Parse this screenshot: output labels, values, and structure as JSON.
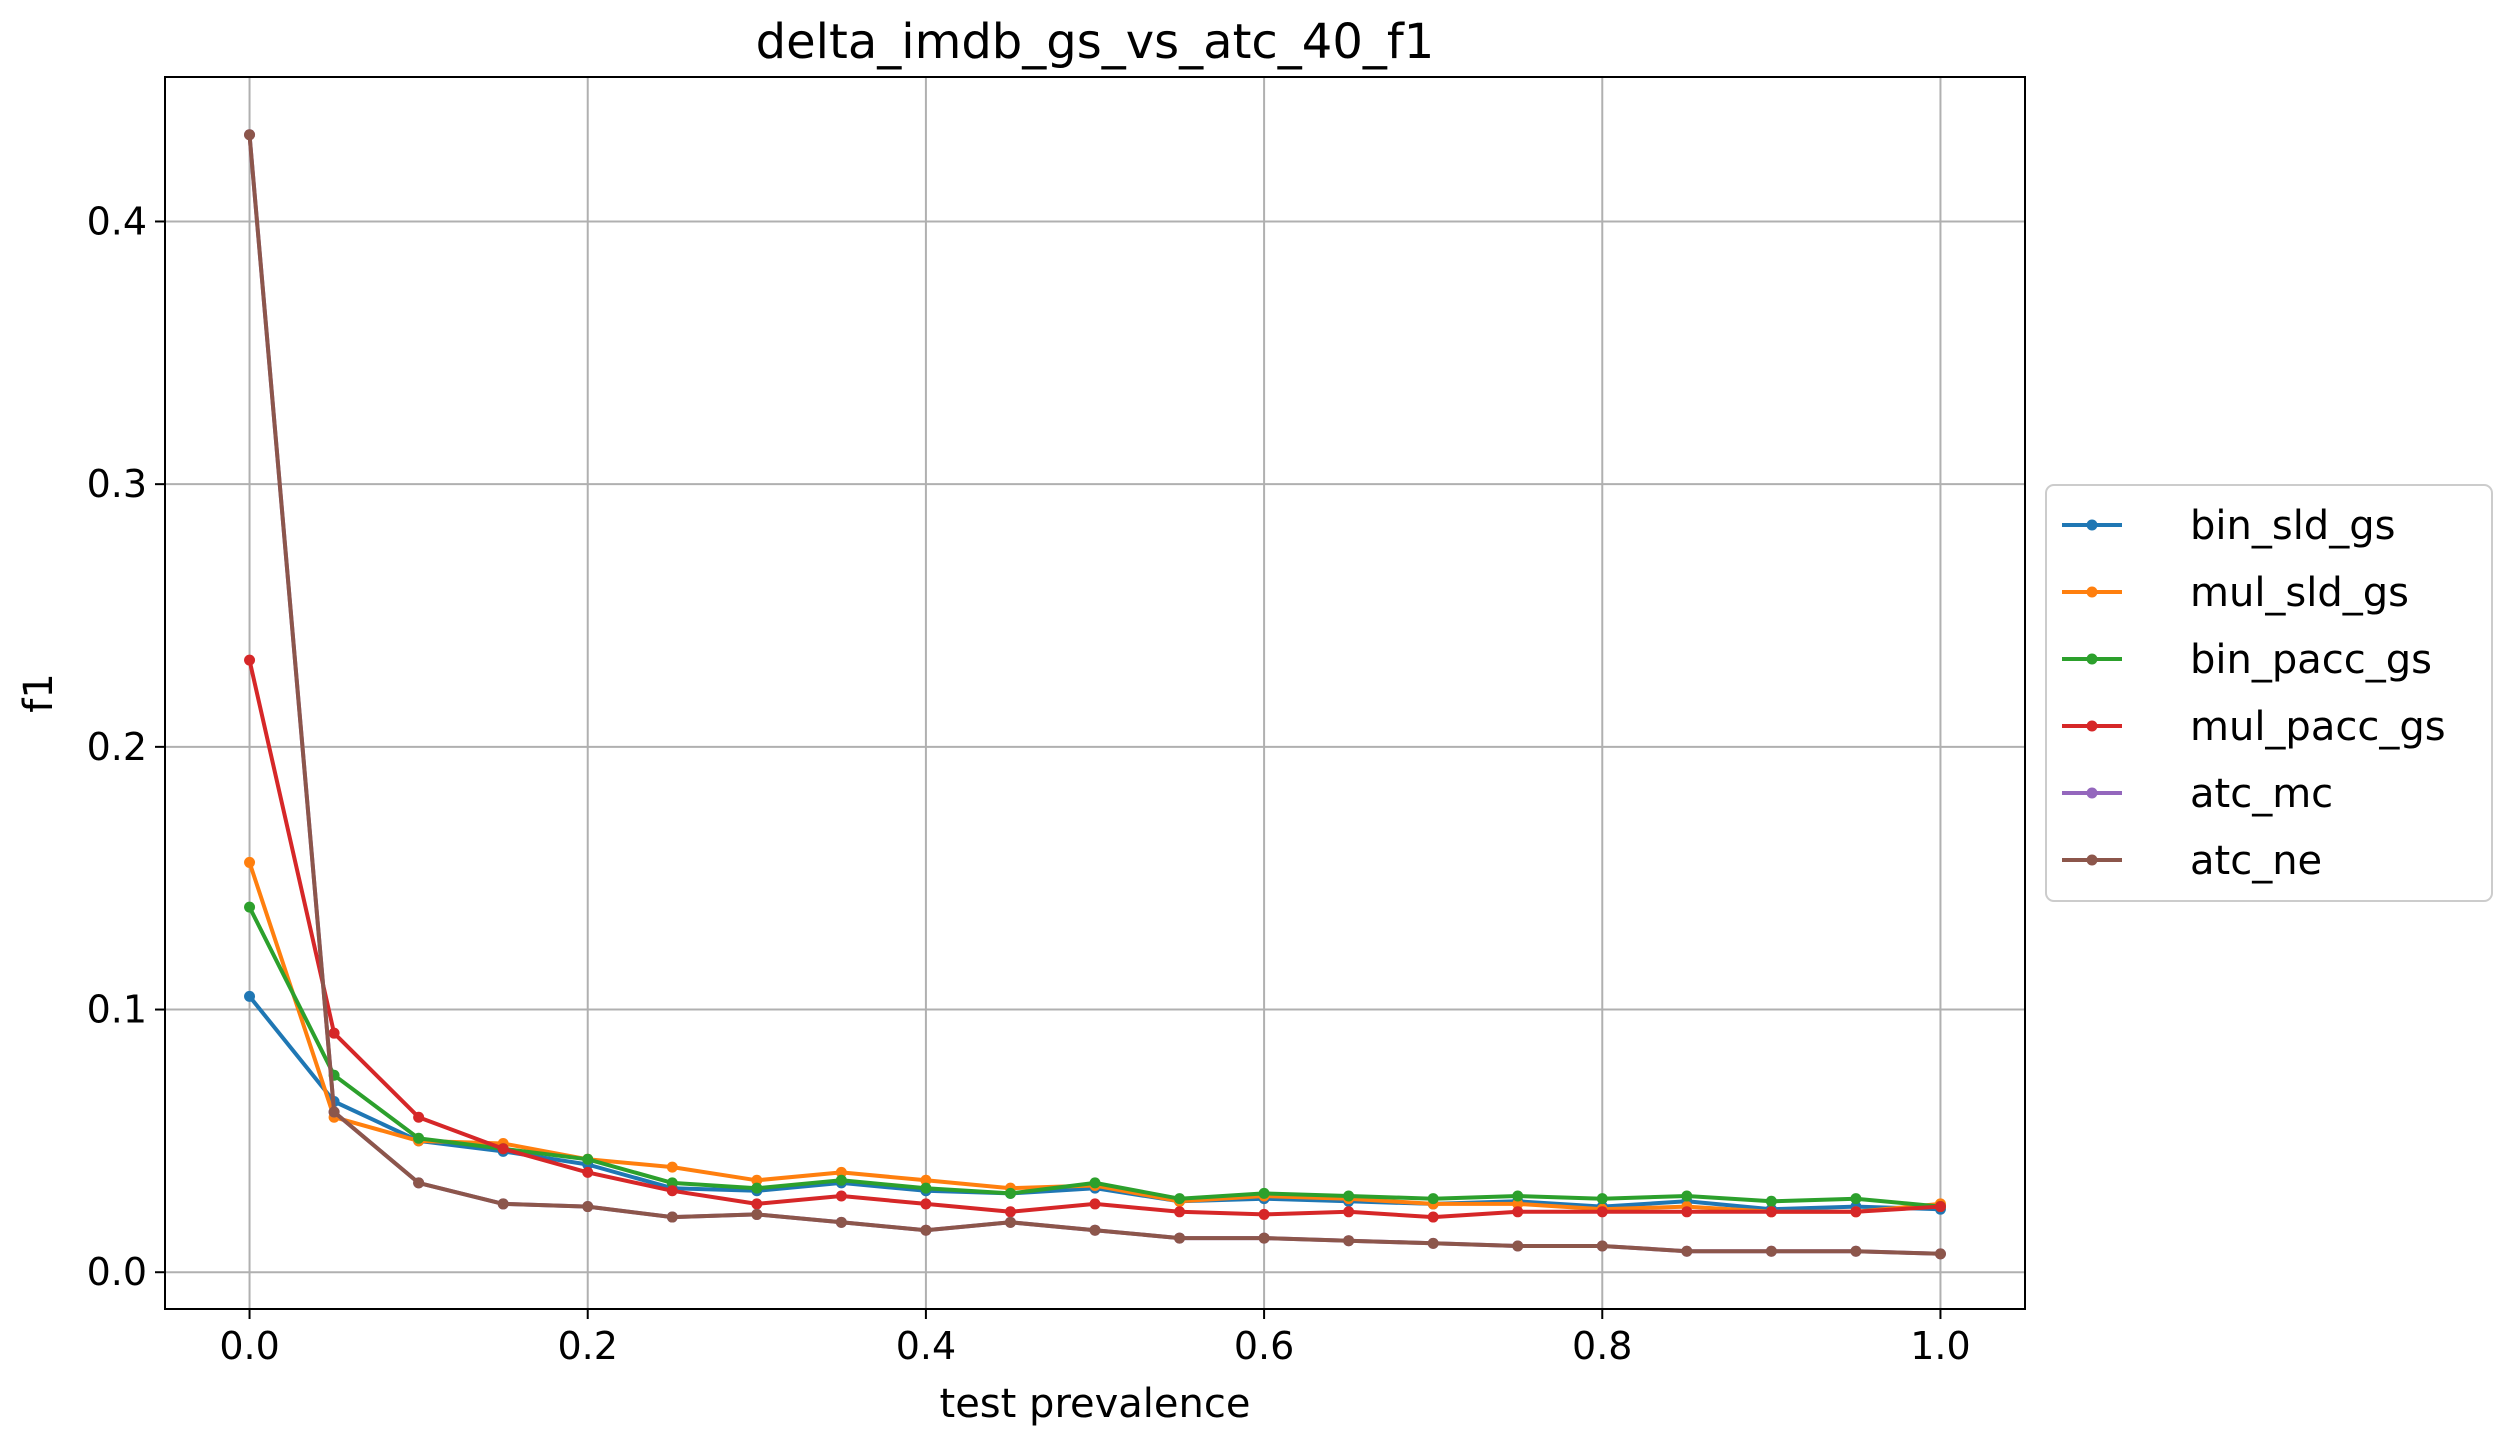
{
  "chart_data": {
    "type": "line",
    "title": "delta_imdb_gs_vs_atc_40_f1",
    "xlabel": "test prevalence",
    "ylabel": "f1",
    "xlim": [
      -0.05,
      1.05
    ],
    "ylim": [
      -0.014,
      0.455
    ],
    "xticks": [
      0.0,
      0.2,
      0.4,
      0.6,
      0.8,
      1.0
    ],
    "xtick_labels": [
      "0.0",
      "0.2",
      "0.4",
      "0.6",
      "0.8",
      "1.0"
    ],
    "yticks": [
      0.0,
      0.1,
      0.2,
      0.3,
      0.4
    ],
    "ytick_labels": [
      "0.0",
      "0.1",
      "0.2",
      "0.3",
      "0.4"
    ],
    "grid": true,
    "legend_position": "outside-right",
    "x": [
      0.0,
      0.05,
      0.1,
      0.15,
      0.2,
      0.25,
      0.3,
      0.35,
      0.4,
      0.45,
      0.5,
      0.55,
      0.6,
      0.65,
      0.7,
      0.75,
      0.8,
      0.85,
      0.9,
      0.95,
      1.0
    ],
    "series": [
      {
        "name": "bin_sld_gs",
        "color": "#1f77b4",
        "values": [
          0.105,
          0.065,
          0.05,
          0.046,
          0.041,
          0.032,
          0.031,
          0.034,
          0.031,
          0.03,
          0.032,
          0.027,
          0.028,
          0.027,
          0.026,
          0.027,
          0.025,
          0.027,
          0.024,
          0.025,
          0.024
        ]
      },
      {
        "name": "mul_sld_gs",
        "color": "#ff7f0e",
        "values": [
          0.156,
          0.059,
          0.05,
          0.049,
          0.043,
          0.04,
          0.035,
          0.038,
          0.035,
          0.032,
          0.033,
          0.027,
          0.029,
          0.028,
          0.026,
          0.026,
          0.024,
          0.025,
          0.023,
          0.023,
          0.026
        ]
      },
      {
        "name": "bin_pacc_gs",
        "color": "#2ca02c",
        "values": [
          0.139,
          0.075,
          0.051,
          0.047,
          0.043,
          0.034,
          0.032,
          0.035,
          0.032,
          0.03,
          0.034,
          0.028,
          0.03,
          0.029,
          0.028,
          0.029,
          0.028,
          0.029,
          0.027,
          0.028,
          0.025
        ]
      },
      {
        "name": "mul_pacc_gs",
        "color": "#d62728",
        "values": [
          0.233,
          0.091,
          0.059,
          0.047,
          0.038,
          0.031,
          0.026,
          0.029,
          0.026,
          0.023,
          0.026,
          0.023,
          0.022,
          0.023,
          0.021,
          0.023,
          0.023,
          0.023,
          0.023,
          0.023,
          0.025
        ]
      },
      {
        "name": "atc_mc",
        "color": "#9467bd",
        "values": [
          0.433,
          0.061,
          0.034,
          0.026,
          0.025,
          0.021,
          0.022,
          0.019,
          0.016,
          0.019,
          0.016,
          0.013,
          0.013,
          0.012,
          0.011,
          0.01,
          0.01,
          0.008,
          0.008,
          0.008,
          0.007
        ]
      },
      {
        "name": "atc_ne",
        "color": "#8c564b",
        "values": [
          0.433,
          0.061,
          0.034,
          0.026,
          0.025,
          0.021,
          0.022,
          0.019,
          0.016,
          0.019,
          0.016,
          0.013,
          0.013,
          0.012,
          0.011,
          0.01,
          0.01,
          0.008,
          0.008,
          0.008,
          0.007
        ]
      }
    ]
  }
}
